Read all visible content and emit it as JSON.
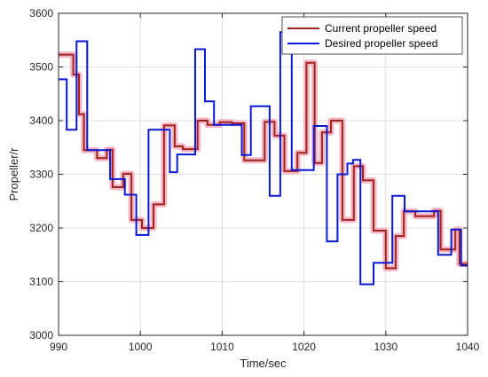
{
  "chart_data": {
    "type": "line",
    "title": "",
    "xlabel": "Time/sec",
    "ylabel": "Propeller/r",
    "xlim": [
      990,
      1040
    ],
    "ylim": [
      3000,
      3600
    ],
    "xticks": [
      990,
      1000,
      1010,
      1020,
      1030,
      1040
    ],
    "yticks": [
      3000,
      3100,
      3200,
      3300,
      3400,
      3500,
      3600
    ],
    "grid": true,
    "legend_position": "top-right",
    "series": [
      {
        "name": "Current propeller speed",
        "color": "#a0231c",
        "shadow_color": "#f4b7c8",
        "x": [
          990,
          991.8,
          991.8,
          992.5,
          992.5,
          993.1,
          993.1,
          994.7,
          994.7,
          995.9,
          995.9,
          996.6,
          996.6,
          997.9,
          997.9,
          998.9,
          998.9,
          1000.2,
          1000.2,
          1001.6,
          1001.6,
          1002.9,
          1002.9,
          1004.2,
          1004.2,
          1005.2,
          1005.2,
          1007.0,
          1007.0,
          1008.2,
          1008.2,
          1009.7,
          1009.7,
          1011.2,
          1011.2,
          1012.7,
          1012.7,
          1015.2,
          1015.2,
          1016.4,
          1016.4,
          1017.6,
          1017.6,
          1019.2,
          1019.2,
          1020.3,
          1020.3,
          1021.3,
          1021.3,
          1022.2,
          1022.2,
          1023.3,
          1023.3,
          1024.7,
          1024.7,
          1026.1,
          1026.1,
          1027.2,
          1027.2,
          1028.5,
          1028.5,
          1030.0,
          1030.0,
          1031.2,
          1031.2,
          1032.2,
          1032.2,
          1033.6,
          1033.6,
          1035.9,
          1035.9,
          1036.7,
          1036.7,
          1038.5,
          1038.5,
          1039.0,
          1039.0,
          1040
        ],
        "y": [
          3523,
          3523,
          3486,
          3486,
          3412,
          3412,
          3345,
          3345,
          3330,
          3330,
          3346,
          3346,
          3276,
          3276,
          3301,
          3301,
          3215,
          3215,
          3200,
          3200,
          3244,
          3244,
          3391,
          3391,
          3352,
          3352,
          3347,
          3347,
          3400,
          3400,
          3392,
          3392,
          3397,
          3397,
          3395,
          3395,
          3326,
          3326,
          3398,
          3398,
          3372,
          3372,
          3306,
          3306,
          3340,
          3340,
          3508,
          3508,
          3321,
          3321,
          3378,
          3378,
          3400,
          3400,
          3215,
          3215,
          3315,
          3315,
          3289,
          3289,
          3195,
          3195,
          3125,
          3125,
          3185,
          3185,
          3231,
          3231,
          3222,
          3222,
          3232,
          3232,
          3160,
          3160,
          3197,
          3197,
          3133,
          3133
        ]
      },
      {
        "name": "Desired propeller speed",
        "color": "#0a19d6",
        "x": [
          990,
          991,
          991,
          992.2,
          992.2,
          993.5,
          993.5,
          996.3,
          996.3,
          998.1,
          998.1,
          999.5,
          999.5,
          1001.0,
          1001.0,
          1003.6,
          1003.6,
          1004.5,
          1004.5,
          1006.7,
          1006.7,
          1007.9,
          1007.9,
          1009.0,
          1009.0,
          1012.4,
          1012.4,
          1013.5,
          1013.5,
          1015.8,
          1015.8,
          1017.1,
          1017.1,
          1018.5,
          1018.5,
          1021.2,
          1021.2,
          1022.8,
          1022.8,
          1024.1,
          1024.1,
          1025.3,
          1025.3,
          1026.0,
          1026.0,
          1026.9,
          1026.9,
          1028.5,
          1028.5,
          1030.8,
          1030.8,
          1032.3,
          1032.3,
          1034.3,
          1034.3,
          1036.4,
          1036.4,
          1038.0,
          1038.0,
          1039.2,
          1039.2,
          1040
        ],
        "y": [
          3477,
          3477,
          3383,
          3383,
          3548,
          3548,
          3345,
          3345,
          3291,
          3291,
          3262,
          3262,
          3187,
          3187,
          3383,
          3383,
          3304,
          3304,
          3337,
          3337,
          3533,
          3533,
          3436,
          3436,
          3392,
          3392,
          3336,
          3336,
          3427,
          3427,
          3260,
          3260,
          3565,
          3565,
          3308,
          3308,
          3390,
          3390,
          3175,
          3175,
          3300,
          3300,
          3320,
          3320,
          3327,
          3327,
          3095,
          3095,
          3135,
          3135,
          3260,
          3260,
          3231,
          3231,
          3231,
          3231,
          3150,
          3150,
          3197,
          3197,
          3130,
          3130
        ]
      }
    ]
  }
}
